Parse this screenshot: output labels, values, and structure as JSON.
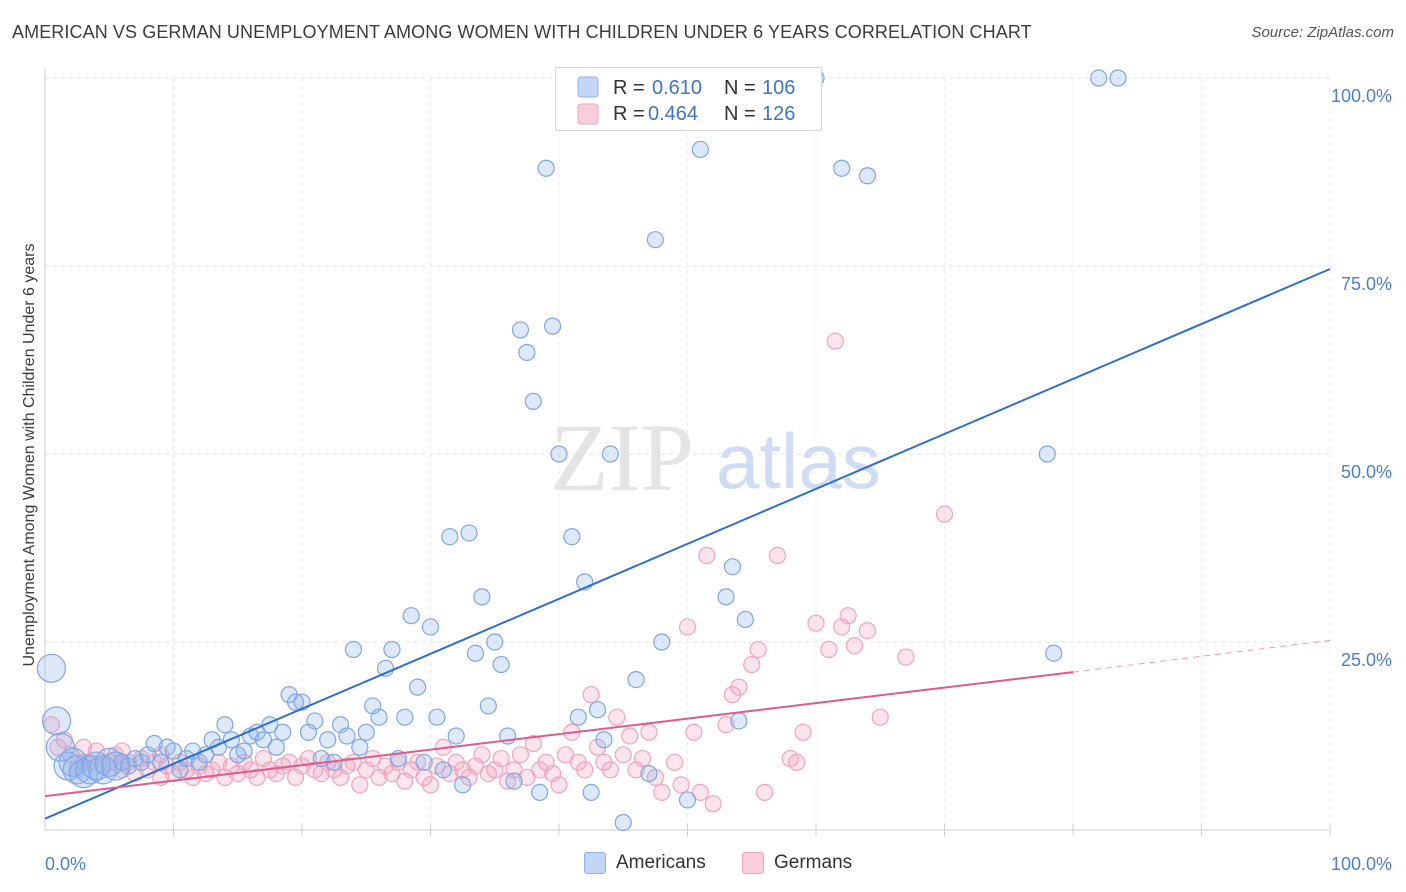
{
  "header": {
    "title": "AMERICAN VS GERMAN UNEMPLOYMENT AMONG WOMEN WITH CHILDREN UNDER 6 YEARS CORRELATION CHART",
    "source": "Source: ZipAtlas.com"
  },
  "watermark": {
    "zip": "ZIP",
    "atlas": "atlas"
  },
  "legend": {
    "americans": {
      "r_label": "R =",
      "r_value": "0.610",
      "n_label": "N =",
      "n_value": "106",
      "color": "#8fb3ea"
    },
    "germans": {
      "r_label": "R =",
      "r_value": "0.464",
      "n_label": "N =",
      "n_value": "126",
      "color": "#f2a4bd"
    }
  },
  "bottom_legend": {
    "americans": "Americans",
    "germans": "Germans"
  },
  "chart_data": {
    "type": "scatter",
    "title": "AMERICAN VS GERMAN UNEMPLOYMENT AMONG WOMEN WITH CHILDREN UNDER 6 YEARS CORRELATION CHART",
    "xlabel": "",
    "ylabel": "Unemployment Among Women with Children Under 6 years",
    "xlim": [
      0,
      100
    ],
    "ylim": [
      0,
      100
    ],
    "x_tick_labels": [
      "0.0%",
      "100.0%"
    ],
    "y_tick_labels": [
      "25.0%",
      "50.0%",
      "75.0%",
      "100.0%"
    ],
    "y_ticks": [
      25,
      50,
      75,
      100
    ],
    "grid": true,
    "legend_position": "top-center",
    "series": [
      {
        "name": "Americans",
        "color": "#6f9de0",
        "trend": {
          "x": [
            0,
            100
          ],
          "y": [
            1.5,
            74.6
          ],
          "color": "#2f6fce"
        },
        "points": [
          [
            0.5,
            21.5
          ],
          [
            0.9,
            14.5
          ],
          [
            1.2,
            11
          ],
          [
            1.8,
            8.5
          ],
          [
            2.2,
            9
          ],
          [
            2.5,
            8
          ],
          [
            3,
            7.5
          ],
          [
            3.5,
            8
          ],
          [
            4,
            8.5
          ],
          [
            4.5,
            8
          ],
          [
            5,
            9
          ],
          [
            5.5,
            8.5
          ],
          [
            6,
            9
          ],
          [
            6.5,
            8.5
          ],
          [
            7,
            9.5
          ],
          [
            7.5,
            9
          ],
          [
            8,
            10
          ],
          [
            8.5,
            11.5
          ],
          [
            9,
            9
          ],
          [
            9.5,
            11
          ],
          [
            10,
            10.5
          ],
          [
            10.5,
            8
          ],
          [
            11,
            9.5
          ],
          [
            11.5,
            10.5
          ],
          [
            12,
            9
          ],
          [
            12.5,
            10
          ],
          [
            13,
            12
          ],
          [
            13.5,
            11
          ],
          [
            14,
            14
          ],
          [
            14.5,
            12
          ],
          [
            15,
            10
          ],
          [
            15.5,
            10.5
          ],
          [
            16,
            12.5
          ],
          [
            16.5,
            13
          ],
          [
            17,
            12
          ],
          [
            17.5,
            14
          ],
          [
            18,
            11
          ],
          [
            18.5,
            13
          ],
          [
            19,
            18
          ],
          [
            19.5,
            17
          ],
          [
            20,
            17
          ],
          [
            20.5,
            13
          ],
          [
            21,
            14.5
          ],
          [
            21.5,
            9.5
          ],
          [
            22,
            12
          ],
          [
            22.5,
            9
          ],
          [
            23,
            14
          ],
          [
            23.5,
            12.5
          ],
          [
            24,
            24
          ],
          [
            24.5,
            11
          ],
          [
            25,
            13
          ],
          [
            25.5,
            16.5
          ],
          [
            26,
            15
          ],
          [
            26.5,
            21.5
          ],
          [
            27,
            24
          ],
          [
            27.5,
            9.5
          ],
          [
            28,
            15
          ],
          [
            28.5,
            28.5
          ],
          [
            29,
            19
          ],
          [
            29.5,
            9
          ],
          [
            30,
            27
          ],
          [
            30.5,
            15
          ],
          [
            31,
            8
          ],
          [
            31.5,
            39
          ],
          [
            32,
            12.5
          ],
          [
            32.5,
            6
          ],
          [
            33,
            39.5
          ],
          [
            33.5,
            23.5
          ],
          [
            34,
            31
          ],
          [
            34.5,
            16.5
          ],
          [
            35,
            25
          ],
          [
            35.5,
            22
          ],
          [
            36,
            12.5
          ],
          [
            36.5,
            6.5
          ],
          [
            37,
            66.5
          ],
          [
            37.5,
            63.5
          ],
          [
            38,
            57
          ],
          [
            38.5,
            5
          ],
          [
            39,
            88
          ],
          [
            39.5,
            67
          ],
          [
            40,
            50
          ],
          [
            41,
            39
          ],
          [
            41.5,
            15
          ],
          [
            42,
            33
          ],
          [
            42.5,
            5
          ],
          [
            43,
            16
          ],
          [
            43.5,
            12
          ],
          [
            44,
            50
          ],
          [
            45,
            1
          ],
          [
            46,
            20
          ],
          [
            47,
            7.5
          ],
          [
            47.5,
            78.5
          ],
          [
            48,
            25
          ],
          [
            50,
            4
          ],
          [
            51,
            90.5
          ],
          [
            53,
            31
          ],
          [
            53.5,
            35
          ],
          [
            54,
            14.5
          ],
          [
            54.5,
            28
          ],
          [
            60,
            100
          ],
          [
            78,
            50
          ],
          [
            78.5,
            23.5
          ],
          [
            82,
            100
          ],
          [
            83.5,
            100
          ],
          [
            62,
            88
          ],
          [
            64,
            87
          ]
        ]
      },
      {
        "name": "Germans",
        "color": "#f2a4bd",
        "trend": {
          "x": [
            0,
            80
          ],
          "y": [
            4.5,
            21
          ],
          "color": "#e05a8c",
          "extension_x": [
            80,
            100
          ],
          "extension_y": [
            21,
            25.2
          ]
        },
        "points": [
          [
            0.5,
            14
          ],
          [
            1,
            11
          ],
          [
            1.5,
            12
          ],
          [
            2,
            10
          ],
          [
            2.5,
            8
          ],
          [
            3,
            11
          ],
          [
            3.5,
            9
          ],
          [
            4,
            10.5
          ],
          [
            4.5,
            8.5
          ],
          [
            5,
            9
          ],
          [
            5.5,
            10
          ],
          [
            6,
            8
          ],
          [
            6.5,
            9
          ],
          [
            7,
            7.5
          ],
          [
            7.5,
            9.5
          ],
          [
            8,
            8
          ],
          [
            8.5,
            9
          ],
          [
            9,
            7
          ],
          [
            9.5,
            8.5
          ],
          [
            10,
            7.5
          ],
          [
            10.5,
            9
          ],
          [
            11,
            8
          ],
          [
            11.5,
            7
          ],
          [
            12,
            8.5
          ],
          [
            12.5,
            7.5
          ],
          [
            13,
            8
          ],
          [
            13.5,
            9
          ],
          [
            14,
            7
          ],
          [
            14.5,
            8.5
          ],
          [
            15,
            7.5
          ],
          [
            15.5,
            9
          ],
          [
            16,
            8
          ],
          [
            16.5,
            7
          ],
          [
            17,
            9.5
          ],
          [
            17.5,
            8
          ],
          [
            18,
            7.5
          ],
          [
            18.5,
            8.5
          ],
          [
            19,
            9
          ],
          [
            19.5,
            7
          ],
          [
            20,
            8.5
          ],
          [
            20.5,
            9.5
          ],
          [
            21,
            8
          ],
          [
            21.5,
            7.5
          ],
          [
            22,
            9
          ],
          [
            22.5,
            8
          ],
          [
            23,
            7
          ],
          [
            23.5,
            8.5
          ],
          [
            24,
            9
          ],
          [
            24.5,
            6
          ],
          [
            25,
            8
          ],
          [
            25.5,
            9.5
          ],
          [
            26,
            7
          ],
          [
            26.5,
            8.5
          ],
          [
            27,
            7.5
          ],
          [
            27.5,
            9
          ],
          [
            28,
            6.5
          ],
          [
            28.5,
            8
          ],
          [
            29,
            9
          ],
          [
            29.5,
            7
          ],
          [
            30,
            6
          ],
          [
            30.5,
            8.5
          ],
          [
            31,
            11
          ],
          [
            31.5,
            7.5
          ],
          [
            32,
            9
          ],
          [
            32.5,
            8
          ],
          [
            33,
            7
          ],
          [
            33.5,
            8.5
          ],
          [
            34,
            10
          ],
          [
            34.5,
            7.5
          ],
          [
            35,
            8
          ],
          [
            35.5,
            9.5
          ],
          [
            36,
            6.5
          ],
          [
            36.5,
            8
          ],
          [
            37,
            10
          ],
          [
            37.5,
            7
          ],
          [
            38,
            11.5
          ],
          [
            38.5,
            8
          ],
          [
            39,
            9
          ],
          [
            39.5,
            7.5
          ],
          [
            40,
            6
          ],
          [
            40.5,
            10
          ],
          [
            41,
            13
          ],
          [
            41.5,
            9
          ],
          [
            42,
            8
          ],
          [
            42.5,
            18
          ],
          [
            43,
            11
          ],
          [
            43.5,
            9
          ],
          [
            44,
            8
          ],
          [
            44.5,
            15
          ],
          [
            45,
            10
          ],
          [
            45.5,
            12.5
          ],
          [
            46,
            8
          ],
          [
            46.5,
            9.5
          ],
          [
            47,
            13
          ],
          [
            47.5,
            7
          ],
          [
            48,
            5
          ],
          [
            49,
            9
          ],
          [
            49.5,
            6
          ],
          [
            50,
            27
          ],
          [
            50.5,
            13
          ],
          [
            51,
            5
          ],
          [
            51.5,
            36.5
          ],
          [
            52,
            3.5
          ],
          [
            53,
            14
          ],
          [
            53.5,
            18
          ],
          [
            54,
            19
          ],
          [
            55,
            22
          ],
          [
            55.5,
            24
          ],
          [
            56,
            5
          ],
          [
            57,
            36.5
          ],
          [
            58,
            9.5
          ],
          [
            58.5,
            9
          ],
          [
            59,
            13
          ],
          [
            60,
            27.5
          ],
          [
            61,
            24
          ],
          [
            61.5,
            65
          ],
          [
            62,
            27
          ],
          [
            62.5,
            28.5
          ],
          [
            63,
            24.5
          ],
          [
            64,
            26.5
          ],
          [
            65,
            15
          ],
          [
            67,
            23
          ],
          [
            70,
            42
          ],
          [
            3,
            9
          ],
          [
            6,
            10.5
          ],
          [
            9,
            10
          ]
        ]
      }
    ]
  }
}
